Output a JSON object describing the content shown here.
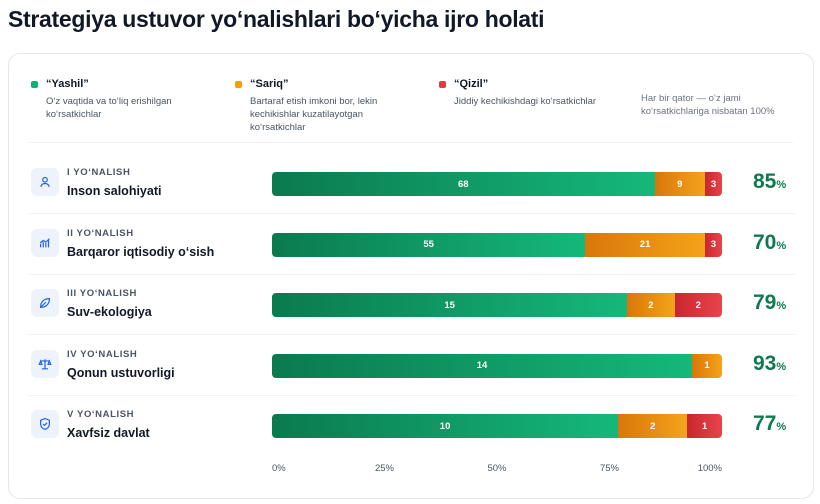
{
  "title": "Strategiya ustuvor yo‘nalishlari bo‘yicha ijro holati",
  "legend": [
    {
      "title": "“Yashil”",
      "desc_lines": [
        "O‘z vaqtida va to‘liq erishilgan",
        "ko‘rsatkichlar"
      ],
      "color": "#10b274"
    },
    {
      "title": "“Sariq”",
      "desc_lines": [
        "Bartaraf etish imkoni bor, lekin",
        "kechikishlar kuzatilayotgan",
        "ko‘rsatkichlar"
      ],
      "color": "#f59e0b"
    },
    {
      "title": "“Qizil”",
      "desc_lines": [
        "Jiddiy kechikishdagi ko‘rsatkichlar"
      ],
      "color": "#e03c44"
    }
  ],
  "note_lines": [
    "Har bir qator — o‘z jami",
    "ko‘rsatkichlariga nisbatan 100%"
  ],
  "pct_sign": "%",
  "icons": [
    "person-icon",
    "growth-chart-icon",
    "leaf-icon",
    "scales-icon",
    "shield-icon"
  ],
  "chart_data": {
    "type": "bar",
    "stacked": true,
    "normalized": true,
    "orientation": "horizontal",
    "categories": [
      "Inson salohiyati",
      "Barqaror iqtisodiy o‘sish",
      "Suv-ekologiya",
      "Qonun ustuvorligi",
      "Xavfsiz davlat"
    ],
    "kickers": [
      "I YO‘NALISH",
      "II YO‘NALISH",
      "III YO‘NALISH",
      "IV YO‘NALISH",
      "V YO‘NALISH"
    ],
    "series": [
      {
        "name": "“Yashil”",
        "values": [
          68,
          55,
          15,
          14,
          10
        ],
        "color": "#10b274"
      },
      {
        "name": "“Sariq”",
        "values": [
          9,
          21,
          2,
          1,
          2
        ],
        "color": "#f59e0b"
      },
      {
        "name": "“Qizil”",
        "values": [
          3,
          3,
          2,
          0,
          1
        ],
        "color": "#e03c44"
      }
    ],
    "percent_labels": [
      85,
      70,
      79,
      93,
      77
    ],
    "xticks": [
      "0%",
      "25%",
      "50%",
      "75%",
      "100%"
    ],
    "xlim": [
      0,
      100
    ],
    "legend_position": "top"
  }
}
